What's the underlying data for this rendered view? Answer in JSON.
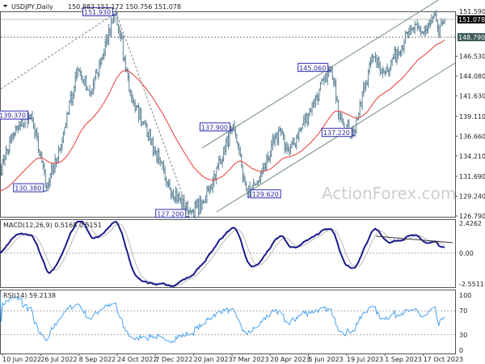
{
  "header": {
    "symbol": "USDJPY,Daily",
    "ohlc": "150.883 151.172 150.756 151.078"
  },
  "watermark": "ActionForex.com",
  "colors": {
    "bars": "#5b8196",
    "ma": "#e83a3a",
    "macd": "#1a1a8c",
    "signal": "#bbbbbb",
    "rsi": "#4aa3f0",
    "channel": "#6f8a80",
    "label_border": "#2a2ab0"
  },
  "chart_data": [
    {
      "type": "ohlc",
      "title": "USDJPY,Daily",
      "price_axis_ticks": [
        "151.590",
        "146.530",
        "144.080",
        "141.630",
        "139.110",
        "136.660",
        "134.210",
        "131.690",
        "129.240",
        "126.790"
      ],
      "ylim": [
        126.79,
        152.6
      ],
      "current_price": "151.078",
      "level_line": "148.790",
      "x_ticks": [
        "10 Jun 2022",
        "26 Jul 2022",
        "8 Sep 2022",
        "24 Oct 2022",
        "7 Dec 2022",
        "20 Jan 2023",
        "7 Mar 2023",
        "20 Apr 2023",
        "5 Jun 2023",
        "19 Jul 2023",
        "1 Sep 2023",
        "17 Oct 2023"
      ],
      "close_path": [
        [
          "2022-06-06",
          131.9
        ],
        [
          "2022-06-22",
          136.7
        ],
        [
          "2022-07-14",
          139.37
        ],
        [
          "2022-08-02",
          130.38
        ],
        [
          "2022-08-18",
          135.5
        ],
        [
          "2022-09-07",
          144.9
        ],
        [
          "2022-09-22",
          142.0
        ],
        [
          "2022-10-21",
          151.93
        ],
        [
          "2022-11-10",
          140.9
        ],
        [
          "2022-11-25",
          138.0
        ],
        [
          "2022-12-20",
          131.0
        ],
        [
          "2023-01-16",
          127.2
        ],
        [
          "2023-02-02",
          128.5
        ],
        [
          "2023-03-08",
          137.9
        ],
        [
          "2023-03-24",
          129.62
        ],
        [
          "2023-04-05",
          130.8
        ],
        [
          "2023-05-02",
          137.5
        ],
        [
          "2023-05-12",
          134.5
        ],
        [
          "2023-06-30",
          145.06
        ],
        [
          "2023-07-14",
          138.0
        ],
        [
          "2023-07-28",
          137.22
        ],
        [
          "2023-08-17",
          146.5
        ],
        [
          "2023-09-01",
          144.5
        ],
        [
          "2023-10-03",
          150.0
        ],
        [
          "2023-10-17",
          149.5
        ],
        [
          "2023-10-31",
          151.7
        ],
        [
          "2023-11-03",
          149.3
        ],
        [
          "2023-11-10",
          151.078
        ]
      ],
      "swing_labels": [
        {
          "text": "151.930",
          "date": "2022-10-21",
          "price": 151.93,
          "side": "left"
        },
        {
          "text": "139.370",
          "date": "2022-07-14",
          "price": 139.37,
          "side": "left"
        },
        {
          "text": "130.380",
          "date": "2022-08-02",
          "price": 130.38,
          "side": "left"
        },
        {
          "text": "127.200",
          "date": "2023-01-16",
          "price": 127.2,
          "side": "left"
        },
        {
          "text": "137.900",
          "date": "2023-03-08",
          "price": 137.9,
          "side": "left"
        },
        {
          "text": "129.620",
          "date": "2023-03-24",
          "price": 129.62,
          "side": "right"
        },
        {
          "text": "145.060",
          "date": "2023-06-30",
          "price": 145.06,
          "side": "left"
        },
        {
          "text": "137.220",
          "date": "2023-07-28",
          "price": 137.22,
          "side": "left"
        }
      ],
      "moving_average": "red line (55 EMA)"
    },
    {
      "type": "line",
      "title": "MACD(12,26,9) 0.5168 0.5151",
      "axis_ticks": [
        "2.4262",
        "0.00",
        "-2.5511"
      ],
      "ylim": [
        -2.5511,
        2.4262
      ]
    },
    {
      "type": "line",
      "title": "RSI(14) 59.2138",
      "axis_ticks": [
        "100",
        "70",
        "30",
        "0"
      ],
      "ylim": [
        0,
        100
      ],
      "levels": [
        70,
        30
      ]
    }
  ]
}
